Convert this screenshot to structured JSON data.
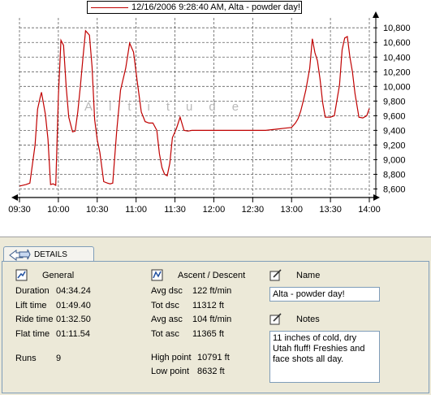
{
  "legend": {
    "label": "12/16/2006 9:28:40 AM, Alta - powder day!",
    "color": "#c00000"
  },
  "watermark": "Altitude",
  "chart_data": {
    "type": "line",
    "title": "",
    "xlabel": "",
    "ylabel": "",
    "x_ticks": [
      "09:30",
      "10:00",
      "10:30",
      "11:00",
      "11:30",
      "12:00",
      "12:30",
      "13:00",
      "13:30",
      "14:00"
    ],
    "y_ticks": [
      "8,600",
      "8,800",
      "9,000",
      "9,200",
      "9,400",
      "9,600",
      "9,800",
      "10,000",
      "10,200",
      "10,400",
      "10,600",
      "10,800"
    ],
    "xlim_minutes": [
      0,
      270
    ],
    "ylim": [
      8550,
      10880
    ],
    "legend_position": "top",
    "grid": true,
    "series": [
      {
        "name": "12/16/2006 9:28:40 AM, Alta - powder day!",
        "color": "#c00000",
        "x_minutes": [
          0,
          5,
          8,
          12,
          14,
          16,
          17,
          20,
          22,
          24,
          26,
          28,
          30,
          32,
          34,
          36,
          38,
          41,
          43,
          45,
          47,
          49,
          51,
          54,
          56,
          58,
          60,
          62,
          65,
          68,
          70,
          72,
          75,
          78,
          82,
          85,
          88,
          91,
          94,
          97,
          100,
          103,
          106,
          108,
          110,
          112,
          114,
          116,
          118,
          121,
          124,
          127,
          130,
          133,
          136,
          139,
          142,
          145,
          150,
          155,
          160,
          165,
          170,
          175,
          180,
          185,
          190,
          195,
          200,
          205,
          210,
          213,
          215,
          217,
          219,
          221,
          224,
          226,
          228,
          230,
          232,
          234,
          236,
          238,
          240,
          243,
          247,
          249,
          251,
          253,
          255,
          257,
          259,
          262,
          265,
          268,
          270
        ],
        "values": [
          8640,
          8660,
          8680,
          9200,
          9690,
          9850,
          9920,
          9620,
          9280,
          8660,
          8670,
          8650,
          9860,
          10630,
          10560,
          10000,
          9580,
          9380,
          9390,
          9650,
          10000,
          10390,
          10760,
          10700,
          10270,
          9550,
          9270,
          9100,
          8700,
          8680,
          8670,
          8680,
          9380,
          9950,
          10250,
          10590,
          10470,
          10050,
          9650,
          9520,
          9500,
          9500,
          9400,
          9080,
          8890,
          8800,
          8780,
          8950,
          9300,
          9420,
          9580,
          9400,
          9390,
          9400,
          9400,
          9400,
          9400,
          9400,
          9400,
          9400,
          9400,
          9400,
          9400,
          9400,
          9400,
          9400,
          9400,
          9410,
          9420,
          9430,
          9440,
          9500,
          9560,
          9660,
          9800,
          9950,
          10250,
          10650,
          10460,
          10350,
          10100,
          9780,
          9580,
          9580,
          9580,
          9600,
          10020,
          10500,
          10660,
          10680,
          10400,
          10200,
          9900,
          9580,
          9570,
          9600,
          9700
        ]
      }
    ]
  },
  "details": {
    "tab_label": "DETAILS",
    "general": {
      "heading": "General",
      "rows": [
        {
          "label": "Duration",
          "value": "04:34.24"
        },
        {
          "label": "Lift time",
          "value": "01:49.40"
        },
        {
          "label": "Ride time",
          "value": "01:32.50"
        },
        {
          "label": "Flat time",
          "value": "01:11.54"
        }
      ],
      "runs_label": "Runs",
      "runs_value": "9"
    },
    "ascent": {
      "heading": "Ascent / Descent",
      "rows": [
        {
          "label": "Avg dsc",
          "value": "122 ft/min"
        },
        {
          "label": "Tot dsc",
          "value": "11312 ft"
        },
        {
          "label": "Avg asc",
          "value": "104 ft/min"
        },
        {
          "label": "Tot asc",
          "value": "11365 ft"
        }
      ],
      "high_label": "High point",
      "high_value": "10791 ft",
      "low_label": "Low point",
      "low_value": "8632 ft"
    },
    "name": {
      "heading": "Name",
      "value": "Alta - powder day!"
    },
    "notes": {
      "heading": "Notes",
      "value": "11 inches of cold, dry Utah fluff! Freshies and face shots all day."
    }
  }
}
